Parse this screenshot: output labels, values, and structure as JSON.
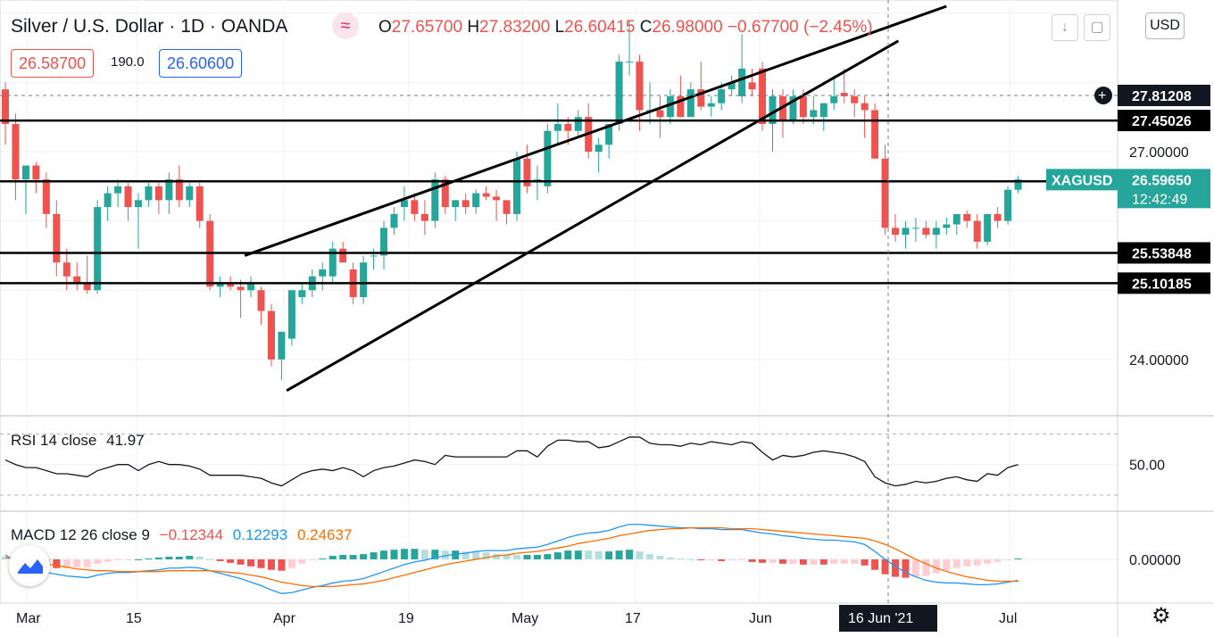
{
  "header": {
    "symbol_title": "Silver / U.S. Dollar · 1D · OANDA",
    "open_label": "O",
    "open": "27.65700",
    "high_label": "H",
    "high": "27.83200",
    "low_label": "L",
    "low": "26.60415",
    "close_label": "C",
    "close": "26.98000",
    "change": "−0.67700 (−2.45%)",
    "sell_price": "26.58700",
    "spread": "190.0",
    "buy_price": "26.60600",
    "currency_button": "USD"
  },
  "colors": {
    "up": "#26a69a",
    "down": "#ef5350",
    "rsi": "#131722",
    "macd": "#2196f3",
    "signal": "#ff6d00"
  },
  "indicators": {
    "rsi_label": "RSI 14 close",
    "rsi_value": "41.97",
    "macd_label": "MACD 12 26 close 9",
    "macd_hist": "−0.12344",
    "macd_macd": "0.12293",
    "macd_signal": "0.24637"
  },
  "chart_data": [
    {
      "type": "candlestick",
      "symbol": "XAGUSD",
      "x_tick_labels": [
        "Mar",
        "15",
        "Apr",
        "19",
        "May",
        "17",
        "Jun",
        "Jul"
      ],
      "ytick_labels": [
        "24.00000",
        "27.00000"
      ],
      "ylim": [
        23.2,
        29.1
      ],
      "candles": [
        [
          27.9,
          28.0,
          27.1,
          27.4
        ],
        [
          27.4,
          27.55,
          26.3,
          26.6
        ],
        [
          26.6,
          26.8,
          26.1,
          26.8
        ],
        [
          26.8,
          26.85,
          26.4,
          26.6
        ],
        [
          26.6,
          26.7,
          25.9,
          26.1
        ],
        [
          26.1,
          26.3,
          25.2,
          25.4
        ],
        [
          25.4,
          25.6,
          25.0,
          25.2
        ],
        [
          25.2,
          25.4,
          25.0,
          25.1
        ],
        [
          25.1,
          25.5,
          24.95,
          25.0
        ],
        [
          25.0,
          26.3,
          24.95,
          26.2
        ],
        [
          26.2,
          26.5,
          26.0,
          26.4
        ],
        [
          26.4,
          26.6,
          26.2,
          26.5
        ],
        [
          26.5,
          26.55,
          26.0,
          26.2
        ],
        [
          26.2,
          26.4,
          25.6,
          26.3
        ],
        [
          26.3,
          26.55,
          26.2,
          26.5
        ],
        [
          26.5,
          26.55,
          26.1,
          26.3
        ],
        [
          26.3,
          26.7,
          26.1,
          26.6
        ],
        [
          26.6,
          26.8,
          26.2,
          26.3
        ],
        [
          26.3,
          26.55,
          26.2,
          26.5
        ],
        [
          26.5,
          26.55,
          25.9,
          26.0
        ],
        [
          26.0,
          26.1,
          25.0,
          25.05
        ],
        [
          25.05,
          25.2,
          24.9,
          25.1
        ],
        [
          25.1,
          25.2,
          25.0,
          25.05
        ],
        [
          25.05,
          25.15,
          24.6,
          25.0
        ],
        [
          25.0,
          25.2,
          24.9,
          25.1
        ],
        [
          25.0,
          25.05,
          24.5,
          24.7
        ],
        [
          24.7,
          24.8,
          23.9,
          24.0
        ],
        [
          24.0,
          24.4,
          23.7,
          24.4
        ],
        [
          24.3,
          25.0,
          24.2,
          25.0
        ],
        [
          24.9,
          25.1,
          24.8,
          25.0
        ],
        [
          25.0,
          25.3,
          24.9,
          25.2
        ],
        [
          25.2,
          25.4,
          25.0,
          25.3
        ],
        [
          25.2,
          25.7,
          25.1,
          25.6
        ],
        [
          25.6,
          25.7,
          25.4,
          25.4
        ],
        [
          25.3,
          25.4,
          24.8,
          24.9
        ],
        [
          24.9,
          25.5,
          24.8,
          25.4
        ],
        [
          25.5,
          25.6,
          25.3,
          25.5
        ],
        [
          25.5,
          26.0,
          25.3,
          25.9
        ],
        [
          25.9,
          26.2,
          25.8,
          26.1
        ],
        [
          26.2,
          26.5,
          26.0,
          26.3
        ],
        [
          26.3,
          26.4,
          26.0,
          26.1
        ],
        [
          26.1,
          26.3,
          25.8,
          26.0
        ],
        [
          26.0,
          26.7,
          25.9,
          26.6
        ],
        [
          26.6,
          26.65,
          26.1,
          26.2
        ],
        [
          26.2,
          26.3,
          26.0,
          26.3
        ],
        [
          26.3,
          26.4,
          26.1,
          26.2
        ],
        [
          26.2,
          26.45,
          26.1,
          26.4
        ],
        [
          26.4,
          26.5,
          26.3,
          26.35
        ],
        [
          26.35,
          26.45,
          26.0,
          26.3
        ],
        [
          26.3,
          26.3,
          25.95,
          26.1
        ],
        [
          26.1,
          27.0,
          26.0,
          26.9
        ],
        [
          26.9,
          27.1,
          26.4,
          26.5
        ],
        [
          26.6,
          26.8,
          26.3,
          26.6
        ],
        [
          26.5,
          27.4,
          26.4,
          27.3
        ],
        [
          27.3,
          27.7,
          27.1,
          27.4
        ],
        [
          27.4,
          27.5,
          27.1,
          27.3
        ],
        [
          27.3,
          27.6,
          27.2,
          27.5
        ],
        [
          27.5,
          27.7,
          26.9,
          27.0
        ],
        [
          27.0,
          27.2,
          26.7,
          27.1
        ],
        [
          27.1,
          27.4,
          26.9,
          27.4
        ],
        [
          27.4,
          28.4,
          27.3,
          28.3
        ],
        [
          28.3,
          28.9,
          28.1,
          28.3
        ],
        [
          28.3,
          28.4,
          27.3,
          27.6
        ],
        [
          27.6,
          28.0,
          27.4,
          27.6
        ],
        [
          27.6,
          27.8,
          27.2,
          27.5
        ],
        [
          27.5,
          27.9,
          27.4,
          27.8
        ],
        [
          27.8,
          28.1,
          27.5,
          27.5
        ],
        [
          27.5,
          28.0,
          27.5,
          27.9
        ],
        [
          27.9,
          28.3,
          27.6,
          27.65
        ],
        [
          27.65,
          27.8,
          27.5,
          27.7
        ],
        [
          27.7,
          28.0,
          27.6,
          27.9
        ],
        [
          27.9,
          28.1,
          27.8,
          28.0
        ],
        [
          27.8,
          28.7,
          27.7,
          28.2
        ],
        [
          28.0,
          28.2,
          27.8,
          27.9
        ],
        [
          28.2,
          28.3,
          27.3,
          27.4
        ],
        [
          27.4,
          27.9,
          27.0,
          27.8
        ],
        [
          27.8,
          27.9,
          27.2,
          27.45
        ],
        [
          27.45,
          27.9,
          27.4,
          27.8
        ],
        [
          27.8,
          27.9,
          27.4,
          27.5
        ],
        [
          27.5,
          27.8,
          27.4,
          27.6
        ],
        [
          27.5,
          27.7,
          27.3,
          27.7
        ],
        [
          27.7,
          28.1,
          27.6,
          27.8
        ],
        [
          27.85,
          28.2,
          27.7,
          27.8
        ],
        [
          27.8,
          27.9,
          27.5,
          27.7
        ],
        [
          27.7,
          27.8,
          27.2,
          27.6
        ],
        [
          27.6,
          27.7,
          26.9,
          26.9
        ],
        [
          26.9,
          27.1,
          25.8,
          25.9
        ],
        [
          25.9,
          26.1,
          25.7,
          25.8
        ],
        [
          25.8,
          26.0,
          25.6,
          25.9
        ],
        [
          25.9,
          26.05,
          25.7,
          25.9
        ],
        [
          25.9,
          26.0,
          25.75,
          25.8
        ],
        [
          25.8,
          26.0,
          25.6,
          25.9
        ],
        [
          25.9,
          26.05,
          25.8,
          25.95
        ],
        [
          25.95,
          26.1,
          25.8,
          26.1
        ],
        [
          26.1,
          26.15,
          25.9,
          26.0
        ],
        [
          26.0,
          26.1,
          25.6,
          25.7
        ],
        [
          25.7,
          26.1,
          25.65,
          26.1
        ],
        [
          26.1,
          26.2,
          25.9,
          26.0
        ],
        [
          26.0,
          26.5,
          25.95,
          26.45
        ],
        [
          26.45,
          26.65,
          26.4,
          26.6
        ]
      ],
      "horizontal_levels": [
        "27.45026",
        "26.57112",
        "25.53848",
        "25.10185"
      ],
      "crosshair_price": "27.81208",
      "last_price_label": "XAGUSD",
      "last_price": "26.59650",
      "countdown": "12:42:49",
      "crosshair_date": "16 Jun '21",
      "channel": {
        "upper": [
          [
            23.4,
            25.5
          ],
          [
            92,
            29.1
          ]
        ],
        "lower": [
          [
            27.5,
            23.55
          ],
          [
            87.3,
            28.6
          ]
        ]
      }
    },
    {
      "type": "line",
      "name": "RSI 14 close",
      "ytick_labels": [
        "50.00"
      ],
      "ylim": [
        20,
        82
      ],
      "values": [
        53,
        50,
        48,
        48,
        46,
        44,
        44,
        43,
        42,
        46,
        48,
        50,
        50,
        46,
        50,
        52,
        50,
        50,
        49,
        47,
        43,
        43,
        43,
        43,
        42,
        41,
        38,
        36,
        40,
        44,
        46,
        47,
        46,
        48,
        46,
        42,
        46,
        48,
        49,
        51,
        53,
        52,
        50,
        56,
        55,
        55,
        55,
        55,
        55,
        55,
        59,
        59,
        55,
        62,
        66,
        66,
        65,
        65,
        61,
        62,
        65,
        68,
        68,
        64,
        63,
        63,
        62,
        64,
        63,
        65,
        64,
        63,
        65,
        64,
        58,
        53,
        56,
        55,
        56,
        58,
        59,
        58,
        57,
        55,
        52,
        42,
        38,
        36,
        37,
        39,
        38,
        39,
        41,
        42,
        40,
        39,
        44,
        43,
        48,
        50
      ]
    },
    {
      "type": "line",
      "name": "MACD 12 26 close 9",
      "ytick_labels": [
        "0.00000"
      ],
      "ylim": [
        -0.5,
        0.55
      ],
      "macd": [
        0.05,
        -0.02,
        -0.08,
        -0.12,
        -0.15,
        -0.17,
        -0.19,
        -0.2,
        -0.21,
        -0.18,
        -0.16,
        -0.15,
        -0.15,
        -0.14,
        -0.13,
        -0.12,
        -0.1,
        -0.1,
        -0.09,
        -0.1,
        -0.13,
        -0.16,
        -0.19,
        -0.22,
        -0.26,
        -0.3,
        -0.35,
        -0.39,
        -0.38,
        -0.35,
        -0.32,
        -0.3,
        -0.27,
        -0.25,
        -0.24,
        -0.22,
        -0.18,
        -0.14,
        -0.1,
        -0.06,
        -0.03,
        -0.01,
        0.02,
        0.04,
        0.06,
        0.07,
        0.09,
        0.1,
        0.1,
        0.1,
        0.12,
        0.13,
        0.14,
        0.17,
        0.21,
        0.25,
        0.28,
        0.3,
        0.31,
        0.33,
        0.37,
        0.4,
        0.4,
        0.39,
        0.38,
        0.37,
        0.36,
        0.36,
        0.35,
        0.35,
        0.34,
        0.34,
        0.34,
        0.32,
        0.3,
        0.29,
        0.27,
        0.26,
        0.24,
        0.23,
        0.22,
        0.22,
        0.21,
        0.2,
        0.17,
        0.09,
        0.0,
        -0.08,
        -0.15,
        -0.2,
        -0.24,
        -0.26,
        -0.27,
        -0.27,
        -0.28,
        -0.29,
        -0.29,
        -0.28,
        -0.26,
        -0.24
      ],
      "signal": [
        0.02,
        0.01,
        -0.01,
        -0.03,
        -0.05,
        -0.07,
        -0.09,
        -0.11,
        -0.12,
        -0.13,
        -0.13,
        -0.14,
        -0.14,
        -0.14,
        -0.14,
        -0.14,
        -0.13,
        -0.13,
        -0.13,
        -0.13,
        -0.13,
        -0.14,
        -0.15,
        -0.16,
        -0.18,
        -0.2,
        -0.23,
        -0.26,
        -0.28,
        -0.3,
        -0.31,
        -0.31,
        -0.31,
        -0.3,
        -0.29,
        -0.28,
        -0.26,
        -0.24,
        -0.21,
        -0.18,
        -0.15,
        -0.12,
        -0.09,
        -0.06,
        -0.04,
        -0.02,
        0.0,
        0.02,
        0.04,
        0.05,
        0.07,
        0.08,
        0.09,
        0.11,
        0.13,
        0.15,
        0.18,
        0.2,
        0.22,
        0.24,
        0.27,
        0.29,
        0.31,
        0.33,
        0.34,
        0.35,
        0.35,
        0.36,
        0.36,
        0.36,
        0.36,
        0.35,
        0.35,
        0.35,
        0.34,
        0.33,
        0.32,
        0.31,
        0.3,
        0.29,
        0.28,
        0.27,
        0.26,
        0.25,
        0.24,
        0.21,
        0.17,
        0.12,
        0.06,
        0.0,
        -0.05,
        -0.1,
        -0.14,
        -0.17,
        -0.2,
        -0.22,
        -0.24,
        -0.25,
        -0.25,
        -0.25
      ]
    }
  ]
}
